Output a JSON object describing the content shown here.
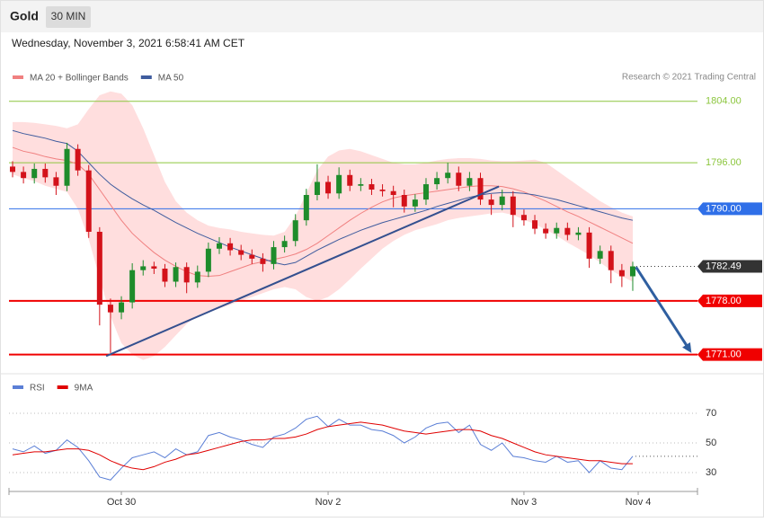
{
  "header": {
    "title": "Gold",
    "interval": "30 MIN",
    "timestamp": "Wednesday, November 3, 2021 6:58:41 AM CET"
  },
  "chart_data": [
    {
      "type": "candlestick",
      "credit": "Research © 2021 Trading Central",
      "up_color": "#1e8c2b",
      "down_color": "#d3121a",
      "xlim": [
        -0.33,
        62.95
      ],
      "ylim": [
        1769.2,
        1805.5
      ],
      "open": [
        1795.5,
        1794.8,
        1794.0,
        1795.2,
        1794.1,
        1793.0,
        1797.8,
        1795.0,
        1787.0,
        1777.5,
        1776.5,
        1777.8,
        1782.0,
        1782.5,
        1782.2,
        1780.5,
        1782.4,
        1780.4,
        1781.8,
        1784.8,
        1785.5,
        1784.6,
        1784.0,
        1783.5,
        1782.8,
        1785.0,
        1785.8,
        1788.5,
        1791.8,
        1793.5,
        1792.0,
        1794.4,
        1793.0,
        1793.2,
        1792.5,
        1792.3,
        1791.8,
        1790.3,
        1791.2,
        1793.2,
        1794.0,
        1794.7,
        1793.0,
        1794.0,
        1791.2,
        1790.5,
        1791.6,
        1789.2,
        1788.5,
        1787.4,
        1786.8,
        1787.5,
        1786.6,
        1786.9,
        1783.5,
        1784.5,
        1782.0,
        1781.2
      ],
      "high": [
        1796.2,
        1795.5,
        1795.9,
        1795.9,
        1794.8,
        1798.6,
        1798.4,
        1795.7,
        1787.6,
        1778.3,
        1778.6,
        1782.9,
        1783.3,
        1783.1,
        1782.8,
        1783.0,
        1783.0,
        1782.6,
        1785.6,
        1786.3,
        1786.2,
        1785.3,
        1784.7,
        1784.2,
        1785.8,
        1786.5,
        1789.3,
        1792.6,
        1795.8,
        1794.3,
        1795.4,
        1795.1,
        1794.0,
        1793.9,
        1793.2,
        1793.0,
        1792.5,
        1791.9,
        1794.0,
        1794.8,
        1796.0,
        1795.5,
        1794.8,
        1794.7,
        1791.9,
        1792.5,
        1792.3,
        1789.9,
        1789.2,
        1788.1,
        1788.2,
        1788.2,
        1787.6,
        1787.6,
        1785.2,
        1785.2,
        1782.8,
        1783.1
      ],
      "low": [
        1794.1,
        1793.3,
        1793.3,
        1793.4,
        1791.8,
        1792.3,
        1794.3,
        1786.2,
        1774.8,
        1771.2,
        1775.6,
        1777.0,
        1781.3,
        1781.5,
        1779.8,
        1779.8,
        1779.0,
        1779.7,
        1781.1,
        1784.1,
        1783.9,
        1783.3,
        1782.8,
        1781.8,
        1782.1,
        1784.3,
        1785.1,
        1787.8,
        1791.1,
        1791.3,
        1791.3,
        1792.3,
        1792.3,
        1791.8,
        1791.6,
        1790.2,
        1789.5,
        1789.6,
        1790.5,
        1792.5,
        1793.3,
        1792.3,
        1792.3,
        1790.5,
        1789.2,
        1789.8,
        1787.6,
        1787.8,
        1786.7,
        1786.1,
        1786.1,
        1785.9,
        1785.9,
        1782.3,
        1782.8,
        1780.3,
        1779.8,
        1779.3
      ],
      "close": [
        1794.8,
        1794.0,
        1795.2,
        1794.1,
        1793.0,
        1797.8,
        1795.0,
        1787.0,
        1777.5,
        1776.5,
        1777.8,
        1782.0,
        1782.5,
        1782.2,
        1780.5,
        1782.4,
        1780.4,
        1781.8,
        1784.8,
        1785.5,
        1784.6,
        1784.0,
        1783.5,
        1782.8,
        1785.0,
        1785.8,
        1788.5,
        1791.8,
        1793.5,
        1792.0,
        1794.4,
        1793.0,
        1793.2,
        1792.5,
        1792.3,
        1791.8,
        1790.3,
        1791.2,
        1793.2,
        1794.0,
        1794.7,
        1793.0,
        1794.0,
        1791.2,
        1790.5,
        1791.6,
        1789.2,
        1788.5,
        1787.4,
        1786.8,
        1787.5,
        1786.6,
        1786.9,
        1783.5,
        1784.5,
        1782.0,
        1781.2,
        1782.49
      ],
      "series": [
        {
          "name": "MA 20 + Bollinger Bands",
          "color": "#f08080",
          "band_color": "#ffdede",
          "values": [
            1798.0,
            1797.5,
            1797.2,
            1796.8,
            1796.5,
            1796.3,
            1795.8,
            1794.5,
            1792.5,
            1790.5,
            1788.5,
            1786.8,
            1785.5,
            1784.3,
            1783.3,
            1782.5,
            1781.8,
            1781.3,
            1781.2,
            1781.3,
            1781.8,
            1782.3,
            1782.8,
            1783.1,
            1783.4,
            1783.7,
            1784.1,
            1784.7,
            1785.5,
            1786.5,
            1787.5,
            1788.5,
            1789.4,
            1790.2,
            1790.9,
            1791.4,
            1791.7,
            1791.9,
            1792.1,
            1792.3,
            1792.5,
            1792.7,
            1792.9,
            1793.0,
            1793.0,
            1792.9,
            1792.6,
            1792.2,
            1791.6,
            1791.0,
            1790.3,
            1789.6,
            1789.0,
            1788.3,
            1787.6,
            1786.9,
            1786.2,
            1785.5
          ],
          "upper": [
            1801.3,
            1801.3,
            1801.2,
            1801.0,
            1800.8,
            1800.5,
            1801.0,
            1803.0,
            1804.8,
            1805.3,
            1805.0,
            1803.5,
            1800.5,
            1797.0,
            1793.5,
            1791.0,
            1789.5,
            1788.5,
            1787.8,
            1787.5,
            1787.3,
            1787.0,
            1786.8,
            1786.6,
            1786.5,
            1787.0,
            1789.0,
            1792.0,
            1795.0,
            1796.8,
            1797.6,
            1797.8,
            1797.5,
            1797.0,
            1796.5,
            1796.0,
            1795.8,
            1795.8,
            1796.0,
            1796.3,
            1796.5,
            1796.6,
            1796.6,
            1796.5,
            1796.3,
            1796.2,
            1796.2,
            1796.3,
            1796.4,
            1796.0,
            1795.0,
            1794.0,
            1793.0,
            1792.0,
            1791.0,
            1790.2,
            1789.5,
            1789.0
          ],
          "lower": [
            1794.5,
            1794.0,
            1793.6,
            1793.0,
            1792.6,
            1792.2,
            1790.0,
            1786.0,
            1781.0,
            1776.0,
            1772.5,
            1771.0,
            1770.3,
            1770.8,
            1772.0,
            1773.5,
            1775.0,
            1776.0,
            1776.5,
            1777.0,
            1777.5,
            1778.0,
            1778.5,
            1779.0,
            1779.5,
            1779.8,
            1779.5,
            1778.5,
            1778.0,
            1778.5,
            1779.5,
            1780.8,
            1782.2,
            1783.5,
            1784.8,
            1785.8,
            1786.6,
            1787.2,
            1787.6,
            1788.0,
            1788.5,
            1788.8,
            1789.0,
            1789.2,
            1789.4,
            1789.5,
            1789.2,
            1788.6,
            1788.0,
            1787.3,
            1786.5,
            1785.6,
            1784.8,
            1784.0,
            1783.0,
            1782.0,
            1781.2,
            1780.5
          ]
        },
        {
          "name": "MA 50",
          "color": "#3f5c9e",
          "values": [
            1800.2,
            1799.8,
            1799.5,
            1799.2,
            1798.8,
            1798.5,
            1797.5,
            1796.0,
            1794.5,
            1793.2,
            1792.2,
            1791.3,
            1790.5,
            1789.8,
            1789.0,
            1788.2,
            1787.5,
            1786.8,
            1786.2,
            1785.6,
            1785.0,
            1784.5,
            1784.0,
            1783.5,
            1783.0,
            1782.7,
            1783.0,
            1783.8,
            1784.6,
            1785.3,
            1786.0,
            1786.6,
            1787.2,
            1787.7,
            1788.2,
            1788.6,
            1789.0,
            1789.4,
            1789.8,
            1790.3,
            1790.7,
            1791.1,
            1791.5,
            1791.8,
            1792.0,
            1792.1,
            1792.1,
            1792.0,
            1791.8,
            1791.5,
            1791.2,
            1790.8,
            1790.4,
            1790.0,
            1789.6,
            1789.2,
            1788.8,
            1788.5
          ]
        }
      ],
      "levels": [
        {
          "value": 1804,
          "label": "1804.00",
          "color": "#8cc63e",
          "style": "text"
        },
        {
          "value": 1796,
          "label": "1796.00",
          "color": "#8cc63e",
          "style": "text"
        },
        {
          "value": 1790,
          "label": "1790.00",
          "color": "#2f6fe8",
          "style": "box"
        },
        {
          "value": 1782.49,
          "label": "1782.49",
          "color": "#333333",
          "style": "dotted"
        },
        {
          "value": 1778,
          "label": "1778.00",
          "color": "#f00000",
          "style": "box"
        },
        {
          "value": 1771,
          "label": "1771.00",
          "color": "#f00000",
          "style": "box"
        }
      ],
      "trendline": {
        "x": [
          8.6,
          44.7
        ],
        "y": [
          1770.8,
          1792.9
        ],
        "color": "#34508f"
      },
      "arrow": {
        "x": [
          57.3,
          62.4
        ],
        "y": [
          1782.4,
          1771.2
        ],
        "color": "#2f5fa0"
      }
    },
    {
      "type": "line",
      "xlim": [
        -0.33,
        62.95
      ],
      "ylim": [
        18.5,
        94.2
      ],
      "yticks": [
        30,
        50,
        70
      ],
      "grid": true,
      "xticks": [
        {
          "value": 10,
          "label": "Oct 30"
        },
        {
          "value": 29,
          "label": "Nov 2"
        },
        {
          "value": 47,
          "label": "Nov 3"
        },
        {
          "value": 57.5,
          "label": "Nov 4"
        }
      ],
      "series": [
        {
          "name": "RSI",
          "color": "#5b7fd6",
          "values": [
            46,
            44,
            48,
            43,
            45,
            52,
            47,
            38,
            27,
            25,
            33,
            40,
            42,
            44,
            40,
            46,
            42,
            44,
            55,
            57,
            54,
            52,
            49,
            47,
            54,
            56,
            60,
            66,
            68,
            61,
            66,
            62,
            62,
            59,
            58,
            55,
            50,
            54,
            60,
            63,
            64,
            57,
            62,
            49,
            45,
            50,
            41,
            40,
            38,
            37,
            41,
            37,
            38,
            30,
            38,
            33,
            32,
            41
          ]
        },
        {
          "name": "9MA",
          "color": "#e00000",
          "values": [
            42,
            43,
            44,
            44,
            45,
            46,
            46,
            45,
            42,
            38,
            35,
            33,
            32,
            34,
            37,
            39,
            42,
            43,
            45,
            47,
            49,
            51,
            52,
            52,
            53,
            53,
            54,
            56,
            59,
            61,
            62,
            63,
            64,
            63,
            62,
            60,
            58,
            57,
            56,
            57,
            58,
            59,
            59,
            58,
            55,
            53,
            50,
            47,
            44,
            42,
            41,
            40,
            39,
            38,
            38,
            37,
            36,
            36
          ]
        }
      ]
    }
  ]
}
